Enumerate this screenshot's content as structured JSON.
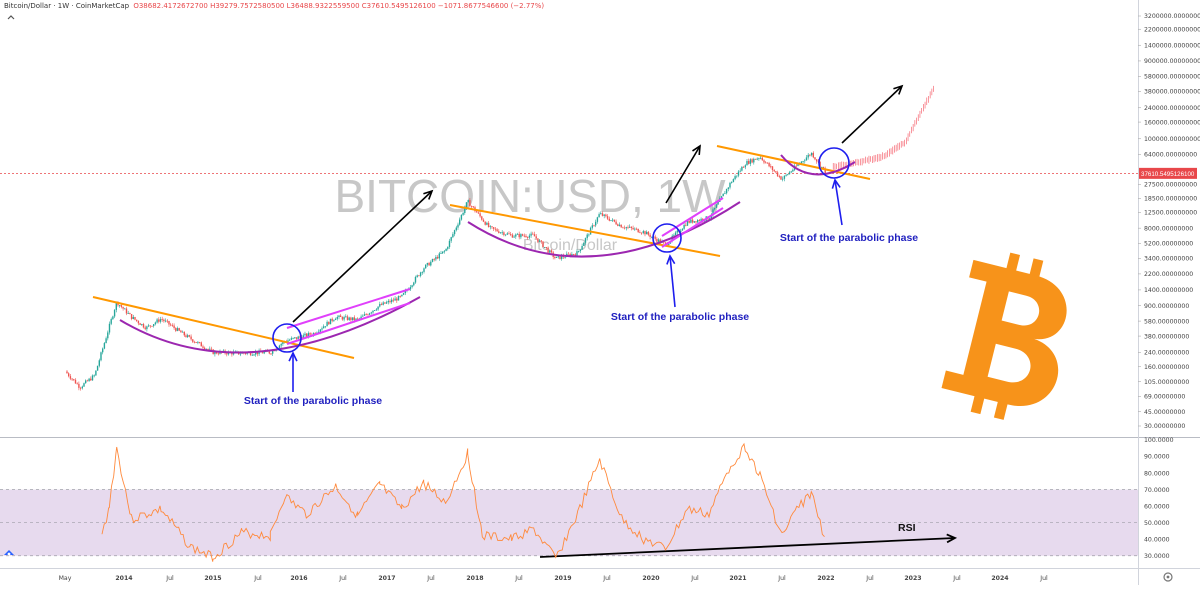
{
  "header": {
    "symbol": "Bitcoin/Dollar",
    "interval": "1W",
    "source": "CoinMarketCap",
    "ohlc": "O38682.4172672700  H39279.7572580500  L36488.9322559500  C37610.5495126100  −1071.8677546600 (−2.77%)"
  },
  "watermark": {
    "main": "BITCOIN:USD, 1W",
    "sub": "Bitcoin/Dollar"
  },
  "colors": {
    "up": "#26a69a",
    "down": "#ef5350",
    "projection": "#f23645",
    "trendline": "#ff9800",
    "arc": "#9c27b0",
    "channel": "#e040fb",
    "circle": "#1e1eee",
    "arrow": "#000000",
    "rsi_line": "#ff8a3d",
    "rsi_band": "#e7daee",
    "logo": "#f7931a",
    "price_label": "#e8474a"
  },
  "annotations": [
    {
      "text": "Start of the parabolic phase"
    },
    {
      "text": "Start of the parabolic phase"
    },
    {
      "text": "Start of the parabolic phase"
    }
  ],
  "rsi_label": "RSI",
  "price_label": "37610.5495126100",
  "chart_data": [
    {
      "type": "candlestick",
      "title": "BITCOIN:USD, 1W",
      "scale": "log",
      "ylim": [
        30,
        3200000
      ],
      "x_ticks": [
        "May",
        "2014",
        "Jul",
        "2015",
        "Jul",
        "2016",
        "Jul",
        "2017",
        "Jul",
        "2018",
        "Jul",
        "2019",
        "Jul",
        "2020",
        "Jul",
        "2021",
        "Jul",
        "2022",
        "Jul",
        "2023",
        "Jul",
        "2024",
        "Jul"
      ],
      "y_ticks": [
        "3200000.00000000",
        "2200000.00000000",
        "1400000.00000000",
        "900000.00000000",
        "580000.00000000",
        "380000.00000000",
        "240000.00000000",
        "160000.00000000",
        "100000.00000000",
        "64000.00000000",
        "37610.5495126100",
        "27500.00000000",
        "18500.00000000",
        "12500.00000000",
        "8000.00000000",
        "5200.00000000",
        "3400.00000000",
        "2200.00000000",
        "1400.00000000",
        "900.00000000",
        "580.00000000",
        "380.00000000",
        "240.00000000",
        "160.00000000",
        "105.00000000",
        "69.00000000",
        "45.00000000",
        "30.00000000"
      ],
      "close_path": [
        {
          "x": "2013-05",
          "y": 140
        },
        {
          "x": "2013-07",
          "y": 90
        },
        {
          "x": "2013-09",
          "y": 125
        },
        {
          "x": "2013-11",
          "y": 500
        },
        {
          "x": "2013-12",
          "y": 1000
        },
        {
          "x": "2014-02",
          "y": 650
        },
        {
          "x": "2014-04",
          "y": 480
        },
        {
          "x": "2014-06",
          "y": 620
        },
        {
          "x": "2014-09",
          "y": 400
        },
        {
          "x": "2015-01",
          "y": 240
        },
        {
          "x": "2015-05",
          "y": 235
        },
        {
          "x": "2015-09",
          "y": 240
        },
        {
          "x": "2015-11",
          "y": 330
        },
        {
          "x": "2016-03",
          "y": 410
        },
        {
          "x": "2016-06",
          "y": 650
        },
        {
          "x": "2016-09",
          "y": 600
        },
        {
          "x": "2016-12",
          "y": 900
        },
        {
          "x": "2017-03",
          "y": 1150
        },
        {
          "x": "2017-06",
          "y": 2600
        },
        {
          "x": "2017-09",
          "y": 4300
        },
        {
          "x": "2017-12",
          "y": 17000
        },
        {
          "x": "2018-03",
          "y": 8000
        },
        {
          "x": "2018-06",
          "y": 6500
        },
        {
          "x": "2018-09",
          "y": 6500
        },
        {
          "x": "2018-12",
          "y": 3400
        },
        {
          "x": "2019-03",
          "y": 4000
        },
        {
          "x": "2019-06",
          "y": 12000
        },
        {
          "x": "2019-09",
          "y": 8500
        },
        {
          "x": "2019-12",
          "y": 7200
        },
        {
          "x": "2020-03",
          "y": 5000
        },
        {
          "x": "2020-06",
          "y": 9500
        },
        {
          "x": "2020-09",
          "y": 10700
        },
        {
          "x": "2020-12",
          "y": 29000
        },
        {
          "x": "2021-02",
          "y": 50000
        },
        {
          "x": "2021-04",
          "y": 60000
        },
        {
          "x": "2021-07",
          "y": 32000
        },
        {
          "x": "2021-11",
          "y": 67000
        },
        {
          "x": "2022-01",
          "y": 38000
        }
      ],
      "projection_path": [
        {
          "x": "2022-02",
          "y": 44000
        },
        {
          "x": "2022-06",
          "y": 52000
        },
        {
          "x": "2022-09",
          "y": 60000
        },
        {
          "x": "2022-12",
          "y": 90000
        },
        {
          "x": "2023-02",
          "y": 200000
        },
        {
          "x": "2023-04",
          "y": 420000
        }
      ]
    },
    {
      "type": "line",
      "title": "RSI",
      "ylim": [
        25,
        100
      ],
      "y_ticks": [
        "100.0000",
        "90.0000",
        "80.0000",
        "70.0000",
        "60.0000",
        "50.0000",
        "40.0000",
        "30.0000"
      ],
      "band": [
        30,
        70
      ],
      "values": [
        {
          "x": "2013-10",
          "y": 42
        },
        {
          "x": "2013-11",
          "y": 60
        },
        {
          "x": "2013-12",
          "y": 95
        },
        {
          "x": "2014-02",
          "y": 52
        },
        {
          "x": "2014-06",
          "y": 58
        },
        {
          "x": "2014-10",
          "y": 35
        },
        {
          "x": "2015-01",
          "y": 29
        },
        {
          "x": "2015-05",
          "y": 44
        },
        {
          "x": "2015-09",
          "y": 42
        },
        {
          "x": "2015-11",
          "y": 66
        },
        {
          "x": "2016-02",
          "y": 55
        },
        {
          "x": "2016-06",
          "y": 72
        },
        {
          "x": "2016-09",
          "y": 54
        },
        {
          "x": "2016-12",
          "y": 73
        },
        {
          "x": "2017-03",
          "y": 58
        },
        {
          "x": "2017-06",
          "y": 74
        },
        {
          "x": "2017-09",
          "y": 62
        },
        {
          "x": "2017-12",
          "y": 92
        },
        {
          "x": "2018-02",
          "y": 42
        },
        {
          "x": "2018-06",
          "y": 40
        },
        {
          "x": "2018-09",
          "y": 46
        },
        {
          "x": "2018-12",
          "y": 28
        },
        {
          "x": "2019-03",
          "y": 55
        },
        {
          "x": "2019-06",
          "y": 88
        },
        {
          "x": "2019-09",
          "y": 52
        },
        {
          "x": "2019-12",
          "y": 40
        },
        {
          "x": "2020-03",
          "y": 34
        },
        {
          "x": "2020-06",
          "y": 58
        },
        {
          "x": "2020-09",
          "y": 55
        },
        {
          "x": "2020-12",
          "y": 85
        },
        {
          "x": "2021-02",
          "y": 96
        },
        {
          "x": "2021-04",
          "y": 78
        },
        {
          "x": "2021-07",
          "y": 42
        },
        {
          "x": "2021-09",
          "y": 58
        },
        {
          "x": "2021-11",
          "y": 68
        },
        {
          "x": "2022-01",
          "y": 38
        }
      ]
    }
  ]
}
